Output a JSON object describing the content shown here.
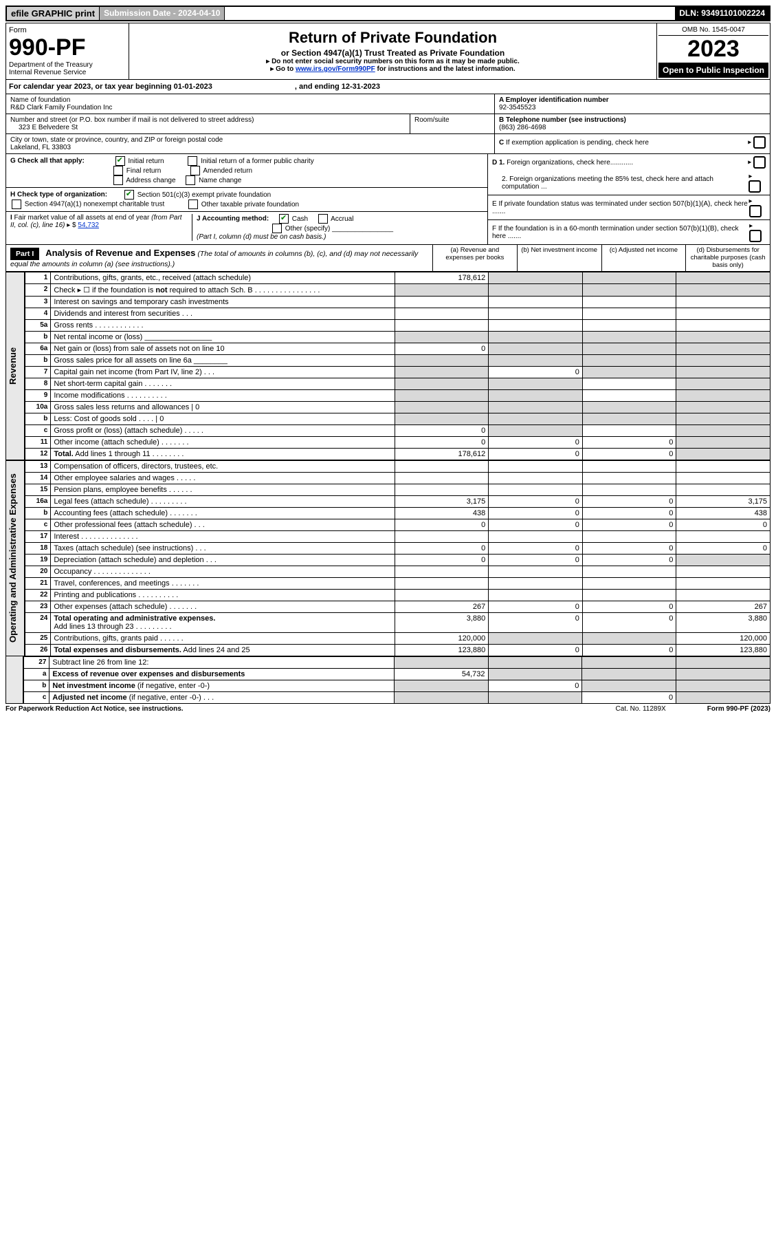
{
  "topbar": {
    "efile": "efile GRAPHIC print",
    "submission_label": "Submission Date - 2024-04-10",
    "dln": "DLN: 93491101002224"
  },
  "header": {
    "form_label": "Form",
    "form_no": "990-PF",
    "dept": "Department of the Treasury",
    "irs": "Internal Revenue Service",
    "title": "Return of Private Foundation",
    "subtitle": "or Section 4947(a)(1) Trust Treated as Private Foundation",
    "note1": "▸ Do not enter social security numbers on this form as it may be made public.",
    "note2_pre": "▸ Go to ",
    "note2_link": "www.irs.gov/Form990PF",
    "note2_post": " for instructions and the latest information.",
    "omb": "OMB No. 1545-0047",
    "year": "2023",
    "open": "Open to Public Inspection"
  },
  "calyear": {
    "text_a": "For calendar year 2023, or tax year beginning 01-01-2023",
    "text_b": ", and ending 12-31-2023"
  },
  "ident": {
    "name_lbl": "Name of foundation",
    "name": "R&D Clark Family Foundation Inc",
    "addr_lbl": "Number and street (or P.O. box number if mail is not delivered to street address)",
    "addr": "323 E Belvedere St",
    "room_lbl": "Room/suite",
    "city_lbl": "City or town, state or province, country, and ZIP or foreign postal code",
    "city": "Lakeland, FL  33803",
    "a_lbl": "A Employer identification number",
    "a_val": "92-3545523",
    "b_lbl": "B Telephone number (see instructions)",
    "b_val": "(863) 286-4698",
    "c_lbl": "C If exemption application is pending, check here"
  },
  "checks": {
    "g_lbl": "G Check all that apply:",
    "g1": "Initial return",
    "g2": "Initial return of a former public charity",
    "g3": "Final return",
    "g4": "Amended return",
    "g5": "Address change",
    "g6": "Name change",
    "h_lbl": "H Check type of organization:",
    "h1": "Section 501(c)(3) exempt private foundation",
    "h2": "Section 4947(a)(1) nonexempt charitable trust",
    "h3": "Other taxable private foundation",
    "i_lbl": "I Fair market value of all assets at end of year (from Part II, col. (c), line 16) ▸ $",
    "i_val": "54,732",
    "j_lbl": "J Accounting method:",
    "j1": "Cash",
    "j2": "Accrual",
    "j3": "Other (specify)",
    "j_note": "(Part I, column (d) must be on cash basis.)",
    "d1": "D 1. Foreign organizations, check here............",
    "d2": "2. Foreign organizations meeting the 85% test, check here and attach computation ...",
    "e": "E  If private foundation status was terminated under section 507(b)(1)(A), check here .......",
    "f": "F  If the foundation is in a 60-month termination under section 507(b)(1)(B), check here ......."
  },
  "part1": {
    "hdr": "Part I",
    "title": "Analysis of Revenue and Expenses",
    "title_note": "(The total of amounts in columns (b), (c), and (d) may not necessarily equal the amounts in column (a) (see instructions).)",
    "col_a": "(a)   Revenue and expenses per books",
    "col_b": "(b)   Net investment income",
    "col_c": "(c)   Adjusted net income",
    "col_d": "(d)   Disbursements for charitable purposes (cash basis only)"
  },
  "rows": [
    {
      "n": "1",
      "d": "Contributions, gifts, grants, etc., received (attach schedule)",
      "a": "178,612",
      "sb": true,
      "sc": true,
      "sd": true
    },
    {
      "n": "2",
      "d": "Check ▸ ☐ if the foundation is <b>not</b> required to attach Sch. B    .  .  .  .  .  .  .  .  .  .  .  .  .  .  .  .",
      "sa": true,
      "sb": true,
      "sc": true,
      "sd": true
    },
    {
      "n": "3",
      "d": "Interest on savings and temporary cash investments"
    },
    {
      "n": "4",
      "d": "Dividends and interest from securities    .  .  ."
    },
    {
      "n": "5a",
      "d": "Gross rents    .  .  .  .  .  .  .  .  .  .  .  ."
    },
    {
      "n": "b",
      "d": "Net rental income or (loss)  ________________",
      "sa": true,
      "sb": true,
      "sc": true,
      "sd": true
    },
    {
      "n": "6a",
      "d": "Net gain or (loss) from sale of assets not on line 10",
      "a": "0",
      "sb": true,
      "sc": true,
      "sd": true
    },
    {
      "n": "b",
      "d": "Gross sales price for all assets on line 6a ________",
      "sa": true,
      "sb": true,
      "sc": true,
      "sd": true
    },
    {
      "n": "7",
      "d": "Capital gain net income (from Part IV, line 2)   .  .  .",
      "sa": true,
      "b": "0",
      "sc": true,
      "sd": true
    },
    {
      "n": "8",
      "d": "Net short-term capital gain  .  .  .  .  .  .  .",
      "sa": true,
      "sb": true,
      "sd": true
    },
    {
      "n": "9",
      "d": "Income modifications .  .  .  .  .  .  .  .  .  .",
      "sa": true,
      "sb": true,
      "sd": true
    },
    {
      "n": "10a",
      "d": "Gross sales less returns and allowances   |            0",
      "sa": true,
      "sb": true,
      "sc": true,
      "sd": true
    },
    {
      "n": "b",
      "d": "Less: Cost of goods sold   .  .  .  .   |            0",
      "sa": true,
      "sb": true,
      "sc": true,
      "sd": true
    },
    {
      "n": "c",
      "d": "Gross profit or (loss) (attach schedule)   .  .  .  .  .",
      "a": "0",
      "sb": true,
      "sd": true
    },
    {
      "n": "11",
      "d": "Other income (attach schedule)   .  .  .  .  .  .  .",
      "a": "0",
      "b": "0",
      "c": "0",
      "sd": true
    },
    {
      "n": "12",
      "d": "<b>Total.</b> Add lines 1 through 11   .  .  .  .  .  .  .  .",
      "a": "178,612",
      "b": "0",
      "c": "0",
      "sd": true
    }
  ],
  "rows2": [
    {
      "n": "13",
      "d": "Compensation of officers, directors, trustees, etc."
    },
    {
      "n": "14",
      "d": "Other employee salaries and wages   .  .  .  .  ."
    },
    {
      "n": "15",
      "d": "Pension plans, employee benefits  .  .  .  .  .  ."
    },
    {
      "n": "16a",
      "d": "Legal fees (attach schedule) .  .  .  .  .  .  .  .  .",
      "a": "3,175",
      "b": "0",
      "c": "0",
      "dd": "3,175"
    },
    {
      "n": "b",
      "d": "Accounting fees (attach schedule) .  .  .  .  .  .  .",
      "a": "438",
      "b": "0",
      "c": "0",
      "dd": "438"
    },
    {
      "n": "c",
      "d": "Other professional fees (attach schedule)   .  .  .",
      "a": "0",
      "b": "0",
      "c": "0",
      "dd": "0"
    },
    {
      "n": "17",
      "d": "Interest  .  .  .  .  .  .  .  .  .  .  .  .  .  ."
    },
    {
      "n": "18",
      "d": "Taxes (attach schedule) (see instructions)    .  .  .",
      "a": "0",
      "b": "0",
      "c": "0",
      "dd": "0"
    },
    {
      "n": "19",
      "d": "Depreciation (attach schedule) and depletion   .  .  .",
      "a": "0",
      "b": "0",
      "c": "0",
      "sd": true
    },
    {
      "n": "20",
      "d": "Occupancy .  .  .  .  .  .  .  .  .  .  .  .  .  ."
    },
    {
      "n": "21",
      "d": "Travel, conferences, and meetings .  .  .  .  .  .  ."
    },
    {
      "n": "22",
      "d": "Printing and publications .  .  .  .  .  .  .  .  .  ."
    },
    {
      "n": "23",
      "d": "Other expenses (attach schedule) .  .  .  .  .  .  .",
      "a": "267",
      "b": "0",
      "c": "0",
      "dd": "267"
    },
    {
      "n": "24",
      "d": "<b>Total operating and administrative expenses.</b><br>Add lines 13 through 23   .  .  .  .  .  .  .  .  .",
      "a": "3,880",
      "b": "0",
      "c": "0",
      "dd": "3,880"
    },
    {
      "n": "25",
      "d": "Contributions, gifts, grants paid    .  .  .  .  .  .",
      "a": "120,000",
      "sb": true,
      "sc": true,
      "dd": "120,000"
    },
    {
      "n": "26",
      "d": "<b>Total expenses and disbursements.</b> Add lines 24 and 25",
      "a": "123,880",
      "b": "0",
      "c": "0",
      "dd": "123,880"
    }
  ],
  "rows3": [
    {
      "n": "27",
      "d": "Subtract line 26 from line 12:",
      "sa": true,
      "sb": true,
      "sc": true,
      "sd": true
    },
    {
      "n": "a",
      "d": "<b>Excess of revenue over expenses and disbursements</b>",
      "a": "54,732",
      "sb": true,
      "sc": true,
      "sd": true
    },
    {
      "n": "b",
      "d": "<b>Net investment income</b> (if negative, enter -0-)",
      "sa": true,
      "b": "0",
      "sc": true,
      "sd": true
    },
    {
      "n": "c",
      "d": "<b>Adjusted net income</b> (if negative, enter -0-)   .  .  .",
      "sa": true,
      "sb": true,
      "c": "0",
      "sd": true
    }
  ],
  "side": {
    "revenue": "Revenue",
    "expenses": "Operating and Administrative Expenses"
  },
  "footer": {
    "left": "For Paperwork Reduction Act Notice, see instructions.",
    "mid": "Cat. No. 11289X",
    "right": "Form 990-PF (2023)"
  }
}
